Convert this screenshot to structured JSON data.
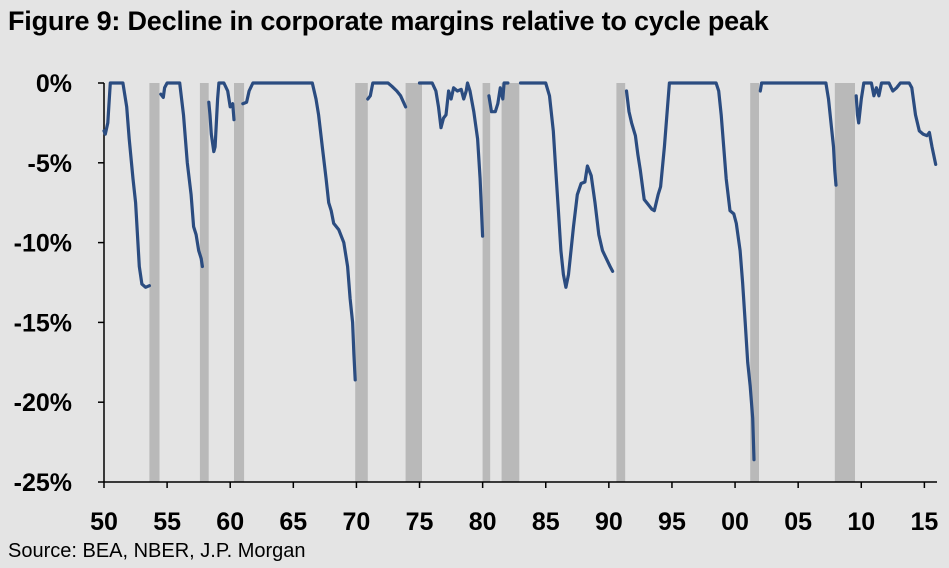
{
  "title": "Figure 9: Decline in corporate margins relative to cycle peak",
  "source": "Source: BEA, NBER, J.P. Morgan",
  "colors": {
    "line": "#2b4c80",
    "recession": "#b9b9b9",
    "background": "#e4e4e4",
    "axis": "#000000"
  },
  "chart_data": {
    "type": "line",
    "xlim": [
      1950,
      2016
    ],
    "ylim": [
      -25,
      0
    ],
    "x_tick_values": [
      1950,
      1955,
      1960,
      1965,
      1970,
      1975,
      1980,
      1985,
      1990,
      1995,
      2000,
      2005,
      2010,
      2015
    ],
    "x_tick_labels": [
      "50",
      "55",
      "60",
      "65",
      "70",
      "75",
      "80",
      "85",
      "90",
      "95",
      "00",
      "05",
      "10",
      "15"
    ],
    "y_tick_values": [
      0,
      -5,
      -10,
      -15,
      -20,
      -25
    ],
    "y_tick_labels": [
      "0%",
      "-5%",
      "-10%",
      "-15%",
      "-20%",
      "-25%"
    ],
    "grid": false,
    "recessions": [
      [
        1953.6,
        1954.4
      ],
      [
        1957.6,
        1958.3
      ],
      [
        1960.3,
        1961.1
      ],
      [
        1969.9,
        1970.9
      ],
      [
        1973.9,
        1975.2
      ],
      [
        1980.0,
        1980.6
      ],
      [
        1981.5,
        1982.9
      ],
      [
        1990.6,
        1991.3
      ],
      [
        2001.2,
        2001.9
      ],
      [
        2007.9,
        2009.5
      ]
    ],
    "series": [
      {
        "points": [
          [
            1950.0,
            -3.0
          ],
          [
            1950.1,
            -3.2
          ],
          [
            1950.3,
            -2.5
          ],
          [
            1950.5,
            0
          ],
          [
            1951.5,
            0
          ],
          [
            1951.8,
            -1.5
          ],
          [
            1952.0,
            -3.5
          ],
          [
            1952.3,
            -6.0
          ],
          [
            1952.5,
            -7.5
          ],
          [
            1952.8,
            -11.5
          ],
          [
            1953.0,
            -12.6
          ],
          [
            1953.3,
            -12.8
          ],
          [
            1953.6,
            -12.7
          ]
        ]
      },
      {
        "points": [
          [
            1954.5,
            -0.7
          ],
          [
            1954.7,
            -0.9
          ],
          [
            1954.8,
            -0.3
          ],
          [
            1955.0,
            0
          ],
          [
            1956.0,
            0
          ],
          [
            1956.3,
            -2.0
          ],
          [
            1956.6,
            -5.0
          ],
          [
            1956.9,
            -7.0
          ],
          [
            1957.1,
            -9.0
          ],
          [
            1957.3,
            -9.5
          ],
          [
            1957.5,
            -10.5
          ],
          [
            1957.7,
            -11.0
          ],
          [
            1957.8,
            -11.5
          ]
        ]
      },
      {
        "points": [
          [
            1958.3,
            -1.2
          ],
          [
            1958.4,
            -2.0
          ],
          [
            1958.5,
            -3.2
          ],
          [
            1958.7,
            -4.3
          ],
          [
            1958.8,
            -4.0
          ],
          [
            1959.0,
            -1.0
          ],
          [
            1959.1,
            0
          ],
          [
            1959.5,
            0
          ],
          [
            1959.8,
            -0.5
          ],
          [
            1960.0,
            -1.5
          ],
          [
            1960.2,
            -1.3
          ],
          [
            1960.3,
            -2.3
          ]
        ]
      },
      {
        "points": [
          [
            1961.0,
            -1.3
          ],
          [
            1961.3,
            -1.2
          ],
          [
            1961.5,
            -0.5
          ],
          [
            1961.8,
            0
          ],
          [
            1966.5,
            0
          ],
          [
            1966.8,
            -1.0
          ],
          [
            1967.0,
            -2.0
          ],
          [
            1967.3,
            -4.0
          ],
          [
            1967.6,
            -6.0
          ],
          [
            1967.8,
            -7.5
          ],
          [
            1968.0,
            -8.0
          ],
          [
            1968.2,
            -8.8
          ],
          [
            1968.6,
            -9.2
          ],
          [
            1969.0,
            -10.0
          ],
          [
            1969.3,
            -11.5
          ],
          [
            1969.5,
            -13.5
          ],
          [
            1969.7,
            -15.0
          ],
          [
            1969.8,
            -17.0
          ],
          [
            1969.9,
            -18.6
          ]
        ]
      },
      {
        "points": [
          [
            1970.9,
            -1.0
          ],
          [
            1971.1,
            -0.8
          ],
          [
            1971.3,
            0
          ],
          [
            1972.5,
            0
          ],
          [
            1972.8,
            -0.2
          ],
          [
            1973.2,
            -0.5
          ],
          [
            1973.5,
            -0.8
          ],
          [
            1973.9,
            -1.5
          ]
        ]
      },
      {
        "points": [
          [
            1975.0,
            0
          ],
          [
            1976.0,
            0
          ],
          [
            1976.3,
            -0.5
          ],
          [
            1976.5,
            -1.5
          ],
          [
            1976.7,
            -2.8
          ],
          [
            1976.9,
            -2.2
          ],
          [
            1977.1,
            -2.0
          ],
          [
            1977.3,
            -0.5
          ],
          [
            1977.5,
            -1.0
          ],
          [
            1977.7,
            -0.3
          ],
          [
            1978.0,
            -0.5
          ],
          [
            1978.3,
            -0.4
          ],
          [
            1978.5,
            -1.0
          ],
          [
            1978.7,
            -0.5
          ],
          [
            1978.8,
            0
          ],
          [
            1979.0,
            -0.5
          ],
          [
            1979.3,
            -1.8
          ],
          [
            1979.6,
            -3.5
          ],
          [
            1979.8,
            -6.0
          ],
          [
            1980.0,
            -9.6
          ]
        ]
      },
      {
        "points": [
          [
            1980.5,
            -0.8
          ],
          [
            1980.7,
            -1.8
          ],
          [
            1981.0,
            -1.8
          ],
          [
            1981.2,
            -1.3
          ],
          [
            1981.4,
            -0.3
          ],
          [
            1981.6,
            -1.0
          ],
          [
            1981.7,
            0
          ],
          [
            1982.0,
            0
          ]
        ]
      },
      {
        "points": [
          [
            1983.0,
            0
          ],
          [
            1985.0,
            0
          ],
          [
            1985.3,
            -0.8
          ],
          [
            1985.6,
            -3.0
          ],
          [
            1985.8,
            -5.5
          ],
          [
            1986.0,
            -8.0
          ],
          [
            1986.2,
            -10.5
          ],
          [
            1986.4,
            -12.0
          ],
          [
            1986.6,
            -12.8
          ],
          [
            1986.8,
            -12.0
          ],
          [
            1987.0,
            -10.5
          ],
          [
            1987.2,
            -9.0
          ],
          [
            1987.5,
            -7.0
          ],
          [
            1987.8,
            -6.3
          ],
          [
            1988.1,
            -6.2
          ],
          [
            1988.3,
            -5.2
          ],
          [
            1988.6,
            -5.8
          ],
          [
            1988.9,
            -7.5
          ],
          [
            1989.2,
            -9.5
          ],
          [
            1989.5,
            -10.5
          ],
          [
            1989.8,
            -11.0
          ],
          [
            1990.1,
            -11.5
          ],
          [
            1990.3,
            -11.8
          ]
        ]
      },
      {
        "points": [
          [
            1991.4,
            -0.5
          ],
          [
            1991.6,
            -1.8
          ],
          [
            1991.8,
            -2.5
          ],
          [
            1992.1,
            -3.3
          ],
          [
            1992.3,
            -4.5
          ],
          [
            1992.5,
            -5.5
          ],
          [
            1992.8,
            -7.3
          ],
          [
            1993.1,
            -7.6
          ],
          [
            1993.4,
            -7.9
          ],
          [
            1993.6,
            -8.0
          ],
          [
            1993.9,
            -7.0
          ],
          [
            1994.1,
            -6.5
          ],
          [
            1994.4,
            -4.0
          ],
          [
            1994.6,
            -2.0
          ],
          [
            1994.8,
            0
          ],
          [
            1998.5,
            0
          ],
          [
            1998.7,
            -0.5
          ],
          [
            1998.9,
            -2.0
          ],
          [
            1999.1,
            -4.0
          ],
          [
            1999.3,
            -6.0
          ],
          [
            1999.6,
            -8.0
          ],
          [
            1999.9,
            -8.2
          ],
          [
            2000.1,
            -8.8
          ],
          [
            2000.4,
            -10.5
          ],
          [
            2000.6,
            -12.5
          ],
          [
            2000.8,
            -15.0
          ],
          [
            2001.0,
            -17.5
          ],
          [
            2001.2,
            -19.0
          ],
          [
            2001.4,
            -21.0
          ],
          [
            2001.5,
            -23.6
          ]
        ]
      },
      {
        "points": [
          [
            2002.0,
            -0.5
          ],
          [
            2002.1,
            0
          ],
          [
            2007.2,
            0
          ],
          [
            2007.4,
            -1.0
          ],
          [
            2007.6,
            -2.5
          ],
          [
            2007.8,
            -4.0
          ],
          [
            2007.9,
            -5.5
          ],
          [
            2008.0,
            -6.4
          ]
        ]
      },
      {
        "points": [
          [
            2009.6,
            -0.8
          ],
          [
            2009.7,
            -2.0
          ],
          [
            2009.8,
            -2.5
          ],
          [
            2010.0,
            -1.0
          ],
          [
            2010.2,
            0
          ],
          [
            2010.8,
            0
          ],
          [
            2011.0,
            -0.8
          ],
          [
            2011.2,
            -0.3
          ],
          [
            2011.4,
            -0.8
          ],
          [
            2011.6,
            0
          ],
          [
            2012.2,
            0
          ],
          [
            2012.5,
            -0.5
          ],
          [
            2012.8,
            -0.3
          ],
          [
            2013.1,
            0
          ],
          [
            2013.8,
            0
          ],
          [
            2014.0,
            -0.3
          ],
          [
            2014.3,
            -2.0
          ],
          [
            2014.6,
            -3.0
          ],
          [
            2014.9,
            -3.2
          ],
          [
            2015.2,
            -3.3
          ],
          [
            2015.4,
            -3.1
          ],
          [
            2015.6,
            -4.0
          ],
          [
            2015.9,
            -5.1
          ]
        ]
      }
    ]
  }
}
